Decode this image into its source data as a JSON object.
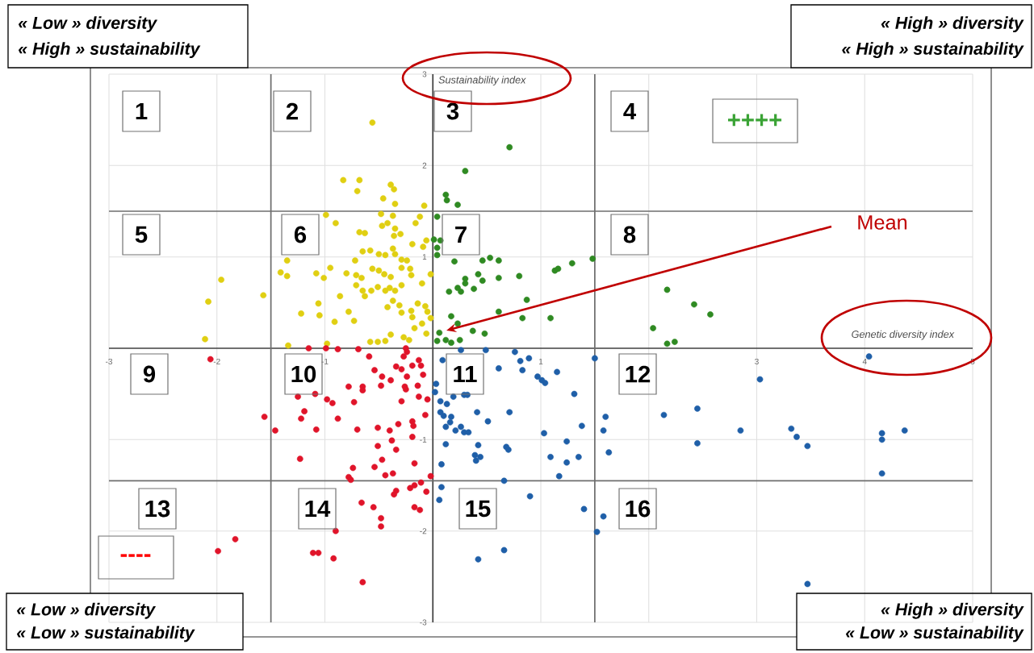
{
  "chart_data": {
    "type": "scatter",
    "xlabel": "Genetic diversity index",
    "ylabel": "Sustainability index",
    "xlim": [
      -3,
      5
    ],
    "ylim": [
      -3,
      3
    ],
    "xticks": [
      -3,
      -2,
      -1,
      1,
      {
        "value": 2,
        "label": null
      },
      3,
      4,
      5
    ],
    "yticks": [
      -3,
      -2,
      -1,
      1,
      2,
      3
    ],
    "grid": true,
    "marker": "circle",
    "ref_lines": [
      {
        "axis": "x",
        "value": -1.5,
        "color": "#6e6e6e"
      },
      {
        "axis": "x",
        "value": 1.5,
        "color": "#6e6e6e"
      },
      {
        "axis": "y",
        "value": 1.5,
        "color": "#6e6e6e"
      },
      {
        "axis": "y",
        "value": -1.45,
        "color": "#6e6e6e"
      }
    ],
    "series": [
      {
        "color": "#e0cf12",
        "x": [
          -0.56,
          -0.83,
          -0.68,
          -0.7,
          -0.39,
          -0.36,
          -0.46,
          -0.35,
          -0.08,
          -0.99,
          -0.9,
          -0.48,
          -0.37,
          -0.12,
          -0.42,
          -0.47,
          -0.16,
          -0.35,
          -0.68,
          -0.63,
          -0.3,
          -0.36,
          -0.19,
          -0.09,
          -0.06,
          -0.65,
          -0.58,
          -0.5,
          -0.44,
          -0.37,
          -0.35,
          -1.35,
          -0.72,
          -0.29,
          -0.24,
          -1.41,
          -1.35,
          -1.08,
          -1.01,
          -0.95,
          -0.8,
          -0.71,
          -0.66,
          -0.56,
          -0.5,
          -0.45,
          -0.39,
          -0.29,
          -0.21,
          -0.2,
          -0.02,
          -1.96,
          -0.71,
          -0.65,
          -0.57,
          -0.51,
          -0.44,
          -0.4,
          -0.35,
          -0.29,
          -0.1,
          -0.63,
          -0.86,
          -1.57,
          -2.08,
          -1.06,
          -0.42,
          -0.37,
          -0.31,
          -0.29,
          -0.2,
          -0.14,
          -0.07,
          -0.05,
          -0.19,
          -0.02,
          -1.22,
          -1.05,
          -0.78,
          -0.91,
          -0.73,
          -0.17,
          -0.1,
          -0.06,
          -2.11,
          -0.39,
          -0.58,
          -0.51,
          -0.44,
          -0.27,
          -0.22,
          -1.34,
          -0.98
        ],
        "values": [
          2.47,
          1.84,
          1.84,
          1.72,
          1.79,
          1.74,
          1.64,
          1.58,
          1.56,
          1.46,
          1.37,
          1.47,
          1.45,
          1.44,
          1.37,
          1.34,
          1.37,
          1.31,
          1.27,
          1.26,
          1.25,
          1.23,
          1.14,
          1.11,
          1.18,
          1.06,
          1.07,
          1.03,
          1.02,
          1.09,
          1.03,
          0.96,
          0.96,
          0.97,
          0.96,
          0.83,
          0.79,
          0.82,
          0.77,
          0.88,
          0.82,
          0.8,
          0.77,
          0.87,
          0.85,
          0.81,
          0.78,
          0.88,
          0.87,
          0.8,
          0.81,
          0.75,
          0.69,
          0.63,
          0.63,
          0.67,
          0.63,
          0.66,
          0.63,
          0.69,
          0.71,
          0.57,
          0.57,
          0.58,
          0.51,
          0.49,
          0.45,
          0.52,
          0.47,
          0.39,
          0.41,
          0.49,
          0.46,
          0.4,
          0.34,
          0.33,
          0.38,
          0.36,
          0.4,
          0.29,
          0.3,
          0.22,
          0.27,
          0.16,
          0.1,
          0.15,
          0.07,
          0.07,
          0.08,
          0.12,
          0.09,
          0.03,
          0.05
        ]
      },
      {
        "color": "#2f8a22",
        "x": [
          0.71,
          0.3,
          0.12,
          0.13,
          0.23,
          0.04,
          0.01,
          0.07,
          0.04,
          0.04,
          0.2,
          0.46,
          0.53,
          0.61,
          1.13,
          1.16,
          1.29,
          1.48,
          0.42,
          0.3,
          0.46,
          0.61,
          0.8,
          0.3,
          0.23,
          0.15,
          0.26,
          0.38,
          0.87,
          2.17,
          2.42,
          2.57,
          0.17,
          0.61,
          0.83,
          1.09,
          0.23,
          0.06,
          0.37,
          0.48,
          2.04,
          0.04,
          0.12,
          0.17,
          0.25,
          2.17,
          2.24
        ],
        "values": [
          2.2,
          1.94,
          1.68,
          1.62,
          1.57,
          1.44,
          1.19,
          1.18,
          1.1,
          1.02,
          0.95,
          0.96,
          0.99,
          0.96,
          0.85,
          0.87,
          0.93,
          0.98,
          0.81,
          0.76,
          0.74,
          0.77,
          0.79,
          0.71,
          0.66,
          0.62,
          0.62,
          0.65,
          0.53,
          0.64,
          0.48,
          0.37,
          0.35,
          0.4,
          0.33,
          0.33,
          0.27,
          0.17,
          0.19,
          0.16,
          0.22,
          0.08,
          0.09,
          0.06,
          0.09,
          0.05,
          0.07
        ]
      },
      {
        "color": "#e0142a",
        "x": [
          -2.06,
          -1.15,
          -0.99,
          -0.88,
          -0.69,
          -0.59,
          -0.25,
          -0.27,
          -0.24,
          -0.13,
          -0.19,
          -0.11,
          -0.34,
          -0.29,
          -0.54,
          -0.47,
          -0.39,
          -0.24,
          -0.09,
          -0.48,
          -0.65,
          -0.65,
          -0.78,
          -0.26,
          -0.25,
          -0.14,
          -1.25,
          -1.09,
          -0.98,
          -0.93,
          -0.73,
          -0.29,
          -0.13,
          -0.05,
          -1.19,
          -1.22,
          -0.88,
          -0.07,
          -1.56,
          -1.46,
          -1.08,
          -0.7,
          -0.51,
          -0.4,
          -0.32,
          -0.19,
          -0.18,
          -0.38,
          -0.19,
          -0.51,
          -0.34,
          -1.23,
          -0.47,
          -0.54,
          -0.17,
          -0.74,
          -0.44,
          -0.37,
          -0.78,
          -0.76,
          -0.02,
          -0.11,
          -0.17,
          -0.21,
          -0.06,
          -0.34,
          -0.36,
          -0.66,
          -0.55,
          -0.17,
          -0.12,
          -0.48,
          -0.48,
          -0.9,
          -1.83,
          -1.99,
          -1.11,
          -1.06,
          -0.92,
          -0.65
        ],
        "values": [
          -0.12,
          0.0,
          0.0,
          -0.01,
          -0.01,
          -0.09,
          0.0,
          -0.09,
          -0.04,
          -0.13,
          -0.19,
          -0.19,
          -0.2,
          -0.23,
          -0.24,
          -0.31,
          -0.35,
          -0.31,
          -0.29,
          -0.41,
          -0.42,
          -0.46,
          -0.42,
          -0.42,
          -0.45,
          -0.41,
          -0.53,
          -0.5,
          -0.56,
          -0.6,
          -0.59,
          -0.58,
          -0.53,
          -0.56,
          -0.69,
          -0.77,
          -0.77,
          -0.73,
          -0.75,
          -0.9,
          -0.89,
          -0.89,
          -0.87,
          -0.9,
          -0.83,
          -0.8,
          -0.85,
          -1.01,
          -0.97,
          -1.07,
          -1.11,
          -1.21,
          -1.22,
          -1.3,
          -1.26,
          -1.31,
          -1.39,
          -1.37,
          -1.41,
          -1.44,
          -1.4,
          -1.47,
          -1.5,
          -1.53,
          -1.57,
          -1.56,
          -1.6,
          -1.69,
          -1.74,
          -1.74,
          -1.77,
          -1.86,
          -1.95,
          -2.0,
          -2.09,
          -2.22,
          -2.24,
          -2.24,
          -2.3,
          -2.56
        ]
      },
      {
        "color": "#1f5fa8",
        "x": [
          0.09,
          0.26,
          0.49,
          0.76,
          0.81,
          0.89,
          0.83,
          0.61,
          0.97,
          1.01,
          1.04,
          1.15,
          1.5,
          1.31,
          0.03,
          0.02,
          0.19,
          0.29,
          0.32,
          0.07,
          0.13,
          0.07,
          0.1,
          0.17,
          0.16,
          0.12,
          0.21,
          0.26,
          0.29,
          0.33,
          0.41,
          0.51,
          0.71,
          1.03,
          1.38,
          1.6,
          1.58,
          1.24,
          0.12,
          0.42,
          0.68,
          0.7,
          0.39,
          0.44,
          0.4,
          1.09,
          1.24,
          1.35,
          1.63,
          0.08,
          1.17,
          0.66,
          0.08,
          0.06,
          0.9,
          1.4,
          1.58,
          1.52,
          0.66,
          0.42,
          4.04,
          3.03,
          2.14,
          2.45,
          2.45,
          2.85,
          3.32,
          3.37,
          3.47,
          4.16,
          4.16,
          4.37,
          4.16,
          3.47
        ],
        "values": [
          -0.13,
          -0.02,
          -0.02,
          -0.04,
          -0.14,
          -0.11,
          -0.24,
          -0.22,
          -0.31,
          -0.35,
          -0.38,
          -0.26,
          -0.11,
          -0.5,
          -0.39,
          -0.48,
          -0.53,
          -0.51,
          -0.51,
          -0.58,
          -0.61,
          -0.7,
          -0.74,
          -0.75,
          -0.81,
          -0.86,
          -0.9,
          -0.86,
          -0.92,
          -0.92,
          -0.7,
          -0.8,
          -0.7,
          -0.93,
          -0.85,
          -0.75,
          -0.9,
          -1.02,
          -1.05,
          -1.06,
          -1.08,
          -1.11,
          -1.17,
          -1.19,
          -1.23,
          -1.19,
          -1.25,
          -1.19,
          -1.14,
          -1.27,
          -1.4,
          -1.45,
          -1.52,
          -1.66,
          -1.62,
          -1.76,
          -1.84,
          -2.01,
          -2.21,
          -2.31,
          -0.09,
          -0.34,
          -0.73,
          -0.66,
          -1.04,
          -0.9,
          -0.88,
          -0.97,
          -1.07,
          -0.93,
          -1.0,
          -0.9,
          -1.37,
          -2.58
        ]
      }
    ],
    "annotations": [
      "1",
      "2",
      "3",
      "4",
      "5",
      "6",
      "7",
      "8",
      "9",
      "10",
      "11",
      "12",
      "13",
      "14",
      "15",
      "16",
      "++++",
      "----",
      "« Low » diversity",
      "« High » sustainability",
      "« High » diversity",
      "« High » sustainability",
      "« Low » diversity",
      "« Low » sustainability",
      "« High » diversity",
      "« Low » sustainability",
      "Mean"
    ]
  }
}
